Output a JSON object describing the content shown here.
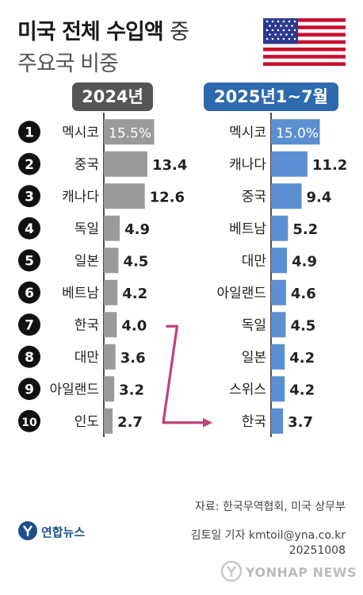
{
  "title": {
    "main": "미국 전체 수입액",
    "suffix": "중",
    "sub": "주요국 비중"
  },
  "colors": {
    "left_bar": "#9a9a9a",
    "right_bar": "#5b8fd1",
    "arrow": "#c2407e",
    "left_header": "#555555",
    "right_header": "#2d6aad"
  },
  "chart_data": {
    "type": "bar",
    "unit": "%",
    "ranks": [
      "1",
      "2",
      "3",
      "4",
      "5",
      "6",
      "7",
      "8",
      "9",
      "10"
    ],
    "series": [
      {
        "name": "2024년",
        "categories": [
          "멕시코",
          "중국",
          "캐나다",
          "독일",
          "일본",
          "베트남",
          "한국",
          "대만",
          "아일랜드",
          "인도"
        ],
        "values": [
          15.5,
          13.4,
          12.6,
          4.9,
          4.5,
          4.2,
          4.0,
          3.6,
          3.2,
          2.7
        ],
        "labels": [
          "15.5%",
          "13.4",
          "12.6",
          "4.9",
          "4.5",
          "4.2",
          "4.0",
          "3.6",
          "3.2",
          "2.7"
        ]
      },
      {
        "name": "2025년1~7월",
        "categories": [
          "멕시코",
          "캐나다",
          "중국",
          "베트남",
          "대만",
          "아일랜드",
          "독일",
          "일본",
          "스위스",
          "한국"
        ],
        "values": [
          15.0,
          11.2,
          9.4,
          5.2,
          4.9,
          4.6,
          4.5,
          4.2,
          4.2,
          3.7
        ],
        "labels": [
          "15.0%",
          "11.2",
          "9.4",
          "5.2",
          "4.9",
          "4.6",
          "4.5",
          "4.2",
          "4.2",
          "3.7"
        ]
      }
    ],
    "highlight": {
      "category": "한국",
      "from_rank": 7,
      "to_rank": 10
    }
  },
  "footer": {
    "source": "자료: 한국무역협회, 미국 상무부",
    "author": "김토일 기자 kmtoil@yna.co.kr",
    "date": "20251008",
    "logo": "연합뉴스",
    "watermark": "YONHAP NEWS"
  }
}
